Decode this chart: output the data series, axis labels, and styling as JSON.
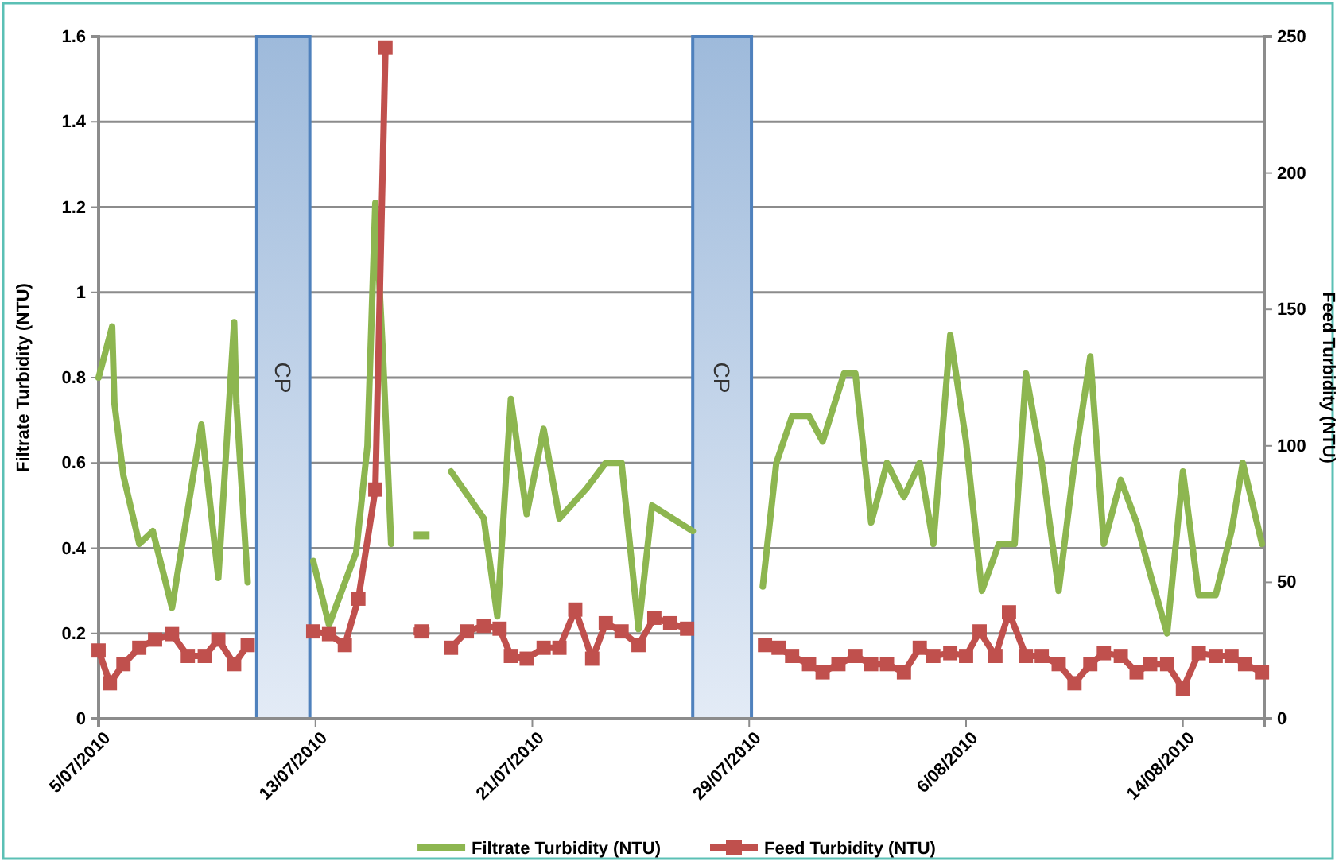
{
  "chart_data": {
    "type": "line",
    "ylabel": "Filtrate Turbidity (NTU)",
    "y2label": "Feed Turbidity (NTU)",
    "xlim": [
      "2010-07-05",
      "2010-08-17"
    ],
    "xticks": [
      {
        "value": "2010-07-05",
        "label": "5/07/2010"
      },
      {
        "value": "2010-07-13",
        "label": "13/07/2010"
      },
      {
        "value": "2010-07-21",
        "label": "21/07/2010"
      },
      {
        "value": "2010-07-29",
        "label": "29/07/2010"
      },
      {
        "value": "2010-08-06",
        "label": "6/08/2010"
      },
      {
        "value": "2010-08-14",
        "label": "14/08/2010"
      }
    ],
    "ylim": [
      0,
      1.6
    ],
    "yticks": [
      0,
      0.2,
      0.4,
      0.6,
      0.8,
      1,
      1.2,
      1.4,
      1.6
    ],
    "y2lim": [
      0,
      250
    ],
    "y2ticks": [
      0,
      50,
      100,
      150,
      200,
      250
    ],
    "grid": "y",
    "legend": "bottom",
    "bands": [
      {
        "axis": "x",
        "from": "2010-07-10T20:00",
        "to": "2010-07-12T19:00",
        "label": "CP",
        "color": "#4f81bd"
      },
      {
        "axis": "x",
        "from": "2010-07-26T22:00",
        "to": "2010-07-29T02:00",
        "label": "CP",
        "color": "#4f81bd"
      }
    ],
    "series": [
      {
        "name": "Filtrate Turbidity (NTU)",
        "color": "#8db650",
        "marker": "none",
        "x": [
          "2010-07-05T00:00",
          "2010-07-05T12:00",
          "2010-07-05T14:00",
          "2010-07-05T22:00",
          "2010-07-06T12:00",
          "2010-07-07T00:00",
          "2010-07-07T17:00",
          "2010-07-08T19:00",
          "2010-07-09T10:00",
          "2010-07-10T00:00",
          "2010-07-10T02:00",
          "2010-07-10T12:00",
          "2010-07-11T19:00",
          "2010-07-12T22:00",
          "2010-07-13T12:00",
          "2010-07-14T12:00",
          "2010-07-14T22:00",
          "2010-07-15T05:00",
          "2010-07-15T12:00",
          "2010-07-15T19:00",
          "2010-07-16T10:00",
          "2010-07-16T22:00",
          "2010-07-17T12:00",
          "2010-07-18T00:00",
          "2010-07-19T05:00",
          "2010-07-19T17:00",
          "2010-07-20T05:00",
          "2010-07-20T19:00",
          "2010-07-21T10:00",
          "2010-07-22T00:00",
          "2010-07-23T00:00",
          "2010-07-23T17:00",
          "2010-07-24T07:00",
          "2010-07-24T22:00",
          "2010-07-25T10:00",
          "2010-07-26T22:00",
          "2010-07-28T00:00",
          "2010-07-29T12:00",
          "2010-07-30T00:00",
          "2010-07-30T14:00",
          "2010-07-31T05:00",
          "2010-07-31T17:00",
          "2010-08-01T12:00",
          "2010-08-01T22:00",
          "2010-08-02T12:00",
          "2010-08-03T02:00",
          "2010-08-03T17:00",
          "2010-08-04T07:00",
          "2010-08-04T19:00",
          "2010-08-05T10:00",
          "2010-08-06T00:00",
          "2010-08-06T14:00",
          "2010-08-07T05:00",
          "2010-08-07T19:00",
          "2010-08-08T05:00",
          "2010-08-08T19:00",
          "2010-08-09T10:00",
          "2010-08-10T00:00",
          "2010-08-10T14:00",
          "2010-08-11T02:00",
          "2010-08-11T17:00",
          "2010-08-12T07:00",
          "2010-08-12T19:00",
          "2010-08-13T10:00",
          "2010-08-14T00:00",
          "2010-08-14T14:00",
          "2010-08-15T05:00",
          "2010-08-15T19:00",
          "2010-08-16T05:00",
          "2010-08-16T22:00"
        ],
        "values": [
          0.8,
          0.92,
          0.74,
          0.57,
          0.41,
          0.44,
          0.26,
          0.69,
          0.33,
          0.93,
          0.74,
          0.32,
          null,
          0.37,
          0.22,
          0.39,
          0.64,
          1.21,
          0.84,
          0.41,
          null,
          0.43,
          null,
          0.58,
          0.47,
          0.24,
          0.75,
          0.48,
          0.68,
          0.47,
          0.54,
          0.6,
          0.6,
          0.21,
          0.5,
          0.44,
          null,
          0.31,
          0.6,
          0.71,
          0.71,
          0.65,
          0.81,
          0.81,
          0.46,
          0.6,
          0.52,
          0.6,
          0.41,
          0.9,
          0.65,
          0.3,
          0.41,
          0.41,
          0.81,
          0.6,
          0.3,
          0.6,
          0.85,
          0.41,
          0.56,
          0.46,
          0.34,
          0.2,
          0.58,
          0.29,
          0.29,
          0.44,
          0.6,
          0.41
        ]
      },
      {
        "name": "Feed Turbidity (NTU)",
        "color": "#c0504d",
        "marker": "square",
        "axis": "y2",
        "x": [
          "2010-07-05T00:00",
          "2010-07-05T10:00",
          "2010-07-05T22:00",
          "2010-07-06T12:00",
          "2010-07-07T02:00",
          "2010-07-07T17:00",
          "2010-07-08T07:00",
          "2010-07-08T22:00",
          "2010-07-09T10:00",
          "2010-07-10T00:00",
          "2010-07-10T12:00",
          "2010-07-11T19:00",
          "2010-07-12T22:00",
          "2010-07-13T12:00",
          "2010-07-14T02:00",
          "2010-07-14T14:00",
          "2010-07-15T05:00",
          "2010-07-15T14:00",
          "2010-07-16T10:00",
          "2010-07-16T22:00",
          "2010-07-17T12:00",
          "2010-07-18T00:00",
          "2010-07-18T14:00",
          "2010-07-19T05:00",
          "2010-07-19T19:00",
          "2010-07-20T05:00",
          "2010-07-20T19:00",
          "2010-07-21T10:00",
          "2010-07-22T00:00",
          "2010-07-22T14:00",
          "2010-07-23T05:00",
          "2010-07-23T17:00",
          "2010-07-24T07:00",
          "2010-07-24T22:00",
          "2010-07-25T12:00",
          "2010-07-26T02:00",
          "2010-07-26T17:00",
          "2010-07-28T00:00",
          "2010-07-29T14:00",
          "2010-07-30T02:00",
          "2010-07-30T14:00",
          "2010-07-31T05:00",
          "2010-07-31T17:00",
          "2010-08-01T07:00",
          "2010-08-01T22:00",
          "2010-08-02T12:00",
          "2010-08-03T02:00",
          "2010-08-03T17:00",
          "2010-08-04T07:00",
          "2010-08-04T19:00",
          "2010-08-05T10:00",
          "2010-08-06T00:00",
          "2010-08-06T12:00",
          "2010-08-07T02:00",
          "2010-08-07T14:00",
          "2010-08-08T05:00",
          "2010-08-08T19:00",
          "2010-08-09T10:00",
          "2010-08-10T00:00",
          "2010-08-10T14:00",
          "2010-08-11T02:00",
          "2010-08-11T17:00",
          "2010-08-12T07:00",
          "2010-08-12T19:00",
          "2010-08-13T10:00",
          "2010-08-14T00:00",
          "2010-08-14T14:00",
          "2010-08-15T05:00",
          "2010-08-15T19:00",
          "2010-08-16T07:00",
          "2010-08-16T22:00"
        ],
        "values": [
          25,
          13,
          20,
          26,
          29,
          31,
          23,
          23,
          29,
          20,
          27,
          null,
          32,
          31,
          27,
          44,
          84,
          246,
          null,
          32,
          null,
          26,
          32,
          34,
          33,
          23,
          22,
          26,
          26,
          40,
          22,
          35,
          32,
          27,
          37,
          35,
          33,
          null,
          27,
          26,
          23,
          20,
          17,
          20,
          23,
          20,
          20,
          17,
          26,
          23,
          24,
          23,
          32,
          23,
          39,
          23,
          23,
          20,
          13,
          20,
          24,
          23,
          17,
          20,
          20,
          11,
          24,
          23,
          23,
          20,
          17
        ]
      }
    ]
  }
}
